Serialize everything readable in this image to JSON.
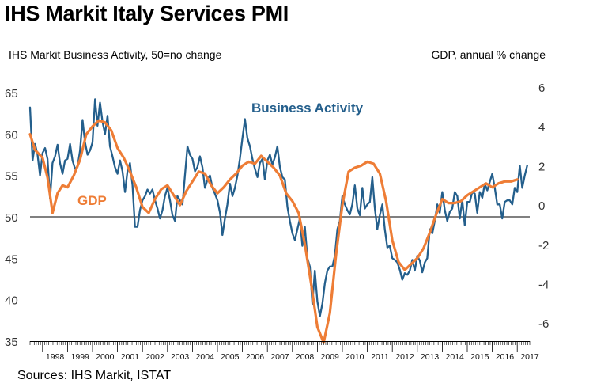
{
  "title": "IHS Markit Italy Services PMI",
  "left_axis_label": "IHS Markit Business Activity, 50=no change",
  "right_axis_label": "GDP, annual % change",
  "source": "Sources: IHS Markit, ISTAT",
  "colors": {
    "business_activity": "#245f8c",
    "gdp": "#ee7d36",
    "reference_line": "#000000"
  },
  "chart_data": {
    "type": "line",
    "title": "IHS Markit Italy Services PMI",
    "x_categories": [
      "1998",
      "1999",
      "2000",
      "2001",
      "2002",
      "2003",
      "2004",
      "2005",
      "2006",
      "2007",
      "2008",
      "2009",
      "2010",
      "2011",
      "2012",
      "2013",
      "2014",
      "2015",
      "2016",
      "2017"
    ],
    "x_range": [
      1997.5,
      2017.5
    ],
    "left_axis": {
      "label": "IHS Markit Business Activity, 50=no change",
      "min": 35,
      "max": 65,
      "ticks": [
        35,
        40,
        45,
        50,
        55,
        60,
        65
      ],
      "reference_line": 50
    },
    "right_axis": {
      "label": "GDP, annual % change",
      "min": -7,
      "max": 6,
      "ticks": [
        -6,
        -4,
        -2,
        0,
        2,
        4,
        6
      ]
    },
    "series": [
      {
        "name": "Business Activity",
        "axis": "left",
        "points": [
          [
            1997.5,
            63.2
          ],
          [
            1997.6,
            56.8
          ],
          [
            1997.7,
            58.8
          ],
          [
            1997.8,
            57.5
          ],
          [
            1997.9,
            55.0
          ],
          [
            1998.0,
            57.7
          ],
          [
            1998.1,
            58.3
          ],
          [
            1998.2,
            57.0
          ],
          [
            1998.3,
            52.2
          ],
          [
            1998.4,
            56.5
          ],
          [
            1998.5,
            57.3
          ],
          [
            1998.6,
            58.7
          ],
          [
            1998.7,
            56.5
          ],
          [
            1998.8,
            55.2
          ],
          [
            1998.9,
            56.8
          ],
          [
            1999.0,
            57.0
          ],
          [
            1999.1,
            58.8
          ],
          [
            1999.2,
            56.8
          ],
          [
            1999.3,
            55.8
          ],
          [
            1999.4,
            56.0
          ],
          [
            1999.5,
            58.0
          ],
          [
            1999.6,
            61.7
          ],
          [
            1999.7,
            59.0
          ],
          [
            1999.8,
            57.5
          ],
          [
            1999.9,
            58.0
          ],
          [
            2000.0,
            59.0
          ],
          [
            2000.1,
            64.2
          ],
          [
            2000.2,
            61.0
          ],
          [
            2000.3,
            63.8
          ],
          [
            2000.4,
            61.5
          ],
          [
            2000.5,
            60.0
          ],
          [
            2000.6,
            62.2
          ],
          [
            2000.7,
            58.5
          ],
          [
            2000.8,
            57.3
          ],
          [
            2000.9,
            56.0
          ],
          [
            2001.0,
            55.2
          ],
          [
            2001.1,
            56.8
          ],
          [
            2001.2,
            55.5
          ],
          [
            2001.3,
            53.0
          ],
          [
            2001.4,
            55.5
          ],
          [
            2001.5,
            56.5
          ],
          [
            2001.6,
            53.8
          ],
          [
            2001.7,
            48.8
          ],
          [
            2001.8,
            48.8
          ],
          [
            2001.9,
            50.8
          ],
          [
            2002.0,
            52.0
          ],
          [
            2002.1,
            52.5
          ],
          [
            2002.2,
            53.3
          ],
          [
            2002.3,
            52.8
          ],
          [
            2002.4,
            53.3
          ],
          [
            2002.5,
            52.0
          ],
          [
            2002.6,
            51.0
          ],
          [
            2002.7,
            49.8
          ],
          [
            2002.8,
            50.8
          ],
          [
            2002.9,
            52.5
          ],
          [
            2003.0,
            53.5
          ],
          [
            2003.1,
            52.0
          ],
          [
            2003.2,
            50.2
          ],
          [
            2003.3,
            49.5
          ],
          [
            2003.4,
            52.5
          ],
          [
            2003.5,
            52.0
          ],
          [
            2003.6,
            51.5
          ],
          [
            2003.7,
            55.0
          ],
          [
            2003.8,
            58.5
          ],
          [
            2003.9,
            57.5
          ],
          [
            2004.0,
            57.0
          ],
          [
            2004.1,
            55.5
          ],
          [
            2004.2,
            56.0
          ],
          [
            2004.3,
            57.3
          ],
          [
            2004.4,
            56.0
          ],
          [
            2004.5,
            53.5
          ],
          [
            2004.6,
            54.5
          ],
          [
            2004.7,
            55.0
          ],
          [
            2004.8,
            53.5
          ],
          [
            2004.9,
            52.8
          ],
          [
            2005.0,
            52.0
          ],
          [
            2005.1,
            50.5
          ],
          [
            2005.2,
            47.8
          ],
          [
            2005.3,
            49.8
          ],
          [
            2005.4,
            51.5
          ],
          [
            2005.5,
            54.0
          ],
          [
            2005.6,
            52.5
          ],
          [
            2005.7,
            53.5
          ],
          [
            2005.8,
            55.0
          ],
          [
            2005.9,
            57.0
          ],
          [
            2006.0,
            59.5
          ],
          [
            2006.1,
            61.8
          ],
          [
            2006.2,
            59.5
          ],
          [
            2006.3,
            58.5
          ],
          [
            2006.4,
            57.0
          ],
          [
            2006.5,
            55.8
          ],
          [
            2006.6,
            54.8
          ],
          [
            2006.7,
            56.5
          ],
          [
            2006.8,
            57.0
          ],
          [
            2006.9,
            54.5
          ],
          [
            2007.0,
            56.8
          ],
          [
            2007.1,
            57.5
          ],
          [
            2007.2,
            56.3
          ],
          [
            2007.3,
            57.2
          ],
          [
            2007.4,
            58.5
          ],
          [
            2007.5,
            56.0
          ],
          [
            2007.6,
            54.8
          ],
          [
            2007.7,
            54.5
          ],
          [
            2007.8,
            51.2
          ],
          [
            2007.9,
            49.5
          ],
          [
            2008.0,
            48.0
          ],
          [
            2008.1,
            47.2
          ],
          [
            2008.2,
            48.5
          ],
          [
            2008.3,
            49.8
          ],
          [
            2008.4,
            46.5
          ],
          [
            2008.5,
            48.8
          ],
          [
            2008.6,
            45.0
          ],
          [
            2008.7,
            44.0
          ],
          [
            2008.8,
            39.5
          ],
          [
            2008.9,
            43.5
          ],
          [
            2009.0,
            39.8
          ],
          [
            2009.1,
            38.0
          ],
          [
            2009.2,
            39.5
          ],
          [
            2009.3,
            42.0
          ],
          [
            2009.4,
            43.5
          ],
          [
            2009.5,
            44.0
          ],
          [
            2009.6,
            44.0
          ],
          [
            2009.7,
            45.3
          ],
          [
            2009.8,
            48.5
          ],
          [
            2009.9,
            49.5
          ],
          [
            2010.0,
            52.5
          ],
          [
            2010.1,
            51.5
          ],
          [
            2010.2,
            50.8
          ],
          [
            2010.3,
            50.3
          ],
          [
            2010.4,
            51.5
          ],
          [
            2010.5,
            53.8
          ],
          [
            2010.6,
            51.0
          ],
          [
            2010.7,
            50.2
          ],
          [
            2010.8,
            53.5
          ],
          [
            2010.9,
            51.0
          ],
          [
            2011.0,
            51.5
          ],
          [
            2011.1,
            51.8
          ],
          [
            2011.2,
            54.8
          ],
          [
            2011.3,
            51.0
          ],
          [
            2011.4,
            48.5
          ],
          [
            2011.5,
            50.2
          ],
          [
            2011.6,
            51.5
          ],
          [
            2011.7,
            48.5
          ],
          [
            2011.8,
            46.3
          ],
          [
            2011.9,
            46.5
          ],
          [
            2012.0,
            45.0
          ],
          [
            2012.1,
            44.8
          ],
          [
            2012.2,
            44.5
          ],
          [
            2012.3,
            43.6
          ],
          [
            2012.4,
            42.4
          ],
          [
            2012.5,
            43.2
          ],
          [
            2012.6,
            43.0
          ],
          [
            2012.7,
            43.5
          ],
          [
            2012.8,
            44.8
          ],
          [
            2012.9,
            43.5
          ],
          [
            2013.0,
            45.3
          ],
          [
            2013.1,
            44.7
          ],
          [
            2013.2,
            43.3
          ],
          [
            2013.3,
            44.5
          ],
          [
            2013.4,
            45.0
          ],
          [
            2013.5,
            48.5
          ],
          [
            2013.6,
            48.0
          ],
          [
            2013.7,
            49.5
          ],
          [
            2013.8,
            51.5
          ],
          [
            2013.9,
            50.5
          ],
          [
            2014.0,
            53.0
          ],
          [
            2014.1,
            50.8
          ],
          [
            2014.2,
            49.5
          ],
          [
            2014.3,
            50.6
          ],
          [
            2014.4,
            51.0
          ],
          [
            2014.5,
            53.0
          ],
          [
            2014.6,
            52.5
          ],
          [
            2014.7,
            49.8
          ],
          [
            2014.8,
            52.0
          ],
          [
            2014.9,
            49.0
          ],
          [
            2015.0,
            51.8
          ],
          [
            2015.1,
            51.8
          ],
          [
            2015.2,
            53.0
          ],
          [
            2015.3,
            52.8
          ],
          [
            2015.4,
            50.5
          ],
          [
            2015.5,
            53.0
          ],
          [
            2015.6,
            52.3
          ],
          [
            2015.7,
            54.0
          ],
          [
            2015.8,
            53.2
          ],
          [
            2015.9,
            54.2
          ],
          [
            2016.0,
            55.2
          ],
          [
            2016.1,
            53.5
          ],
          [
            2016.2,
            51.5
          ],
          [
            2016.3,
            51.5
          ],
          [
            2016.4,
            49.8
          ],
          [
            2016.5,
            51.8
          ],
          [
            2016.6,
            52.0
          ],
          [
            2016.7,
            52.0
          ],
          [
            2016.8,
            51.5
          ],
          [
            2016.9,
            53.5
          ],
          [
            2017.0,
            53.0
          ],
          [
            2017.1,
            56.2
          ],
          [
            2017.2,
            53.5
          ],
          [
            2017.3,
            55.0
          ],
          [
            2017.4,
            56.2
          ]
        ]
      },
      {
        "name": "GDP",
        "axis": "right",
        "points": [
          [
            1997.5,
            3.6
          ],
          [
            1997.7,
            2.8
          ],
          [
            1998.0,
            2.4
          ],
          [
            1998.2,
            1.4
          ],
          [
            1998.3,
            0.5
          ],
          [
            1998.4,
            -0.4
          ],
          [
            1998.6,
            0.6
          ],
          [
            1998.8,
            1.0
          ],
          [
            1999.0,
            0.9
          ],
          [
            1999.25,
            1.5
          ],
          [
            1999.5,
            2.3
          ],
          [
            1999.75,
            3.6
          ],
          [
            2000.0,
            4.0
          ],
          [
            2000.25,
            4.3
          ],
          [
            2000.5,
            4.2
          ],
          [
            2000.75,
            3.8
          ],
          [
            2001.0,
            2.9
          ],
          [
            2001.25,
            2.4
          ],
          [
            2001.5,
            1.7
          ],
          [
            2001.75,
            0.9
          ],
          [
            2002.0,
            -0.1
          ],
          [
            2002.25,
            -0.4
          ],
          [
            2002.5,
            0.3
          ],
          [
            2002.75,
            0.8
          ],
          [
            2003.0,
            1.0
          ],
          [
            2003.25,
            0.5
          ],
          [
            2003.5,
            0.0
          ],
          [
            2003.75,
            0.7
          ],
          [
            2004.0,
            1.2
          ],
          [
            2004.25,
            1.7
          ],
          [
            2004.5,
            1.6
          ],
          [
            2004.75,
            1.0
          ],
          [
            2005.0,
            0.6
          ],
          [
            2005.25,
            0.9
          ],
          [
            2005.5,
            1.3
          ],
          [
            2005.75,
            1.6
          ],
          [
            2006.0,
            2.0
          ],
          [
            2006.25,
            2.2
          ],
          [
            2006.5,
            2.1
          ],
          [
            2006.75,
            2.5
          ],
          [
            2007.0,
            2.2
          ],
          [
            2007.25,
            1.9
          ],
          [
            2007.5,
            1.5
          ],
          [
            2007.75,
            0.6
          ],
          [
            2008.0,
            0.2
          ],
          [
            2008.25,
            -0.4
          ],
          [
            2008.5,
            -2.0
          ],
          [
            2008.75,
            -4.0
          ],
          [
            2009.0,
            -6.2
          ],
          [
            2009.25,
            -7.0
          ],
          [
            2009.5,
            -5.5
          ],
          [
            2009.75,
            -2.5
          ],
          [
            2010.0,
            0.0
          ],
          [
            2010.25,
            1.7
          ],
          [
            2010.5,
            1.9
          ],
          [
            2010.75,
            2.0
          ],
          [
            2011.0,
            2.2
          ],
          [
            2011.25,
            2.1
          ],
          [
            2011.5,
            1.6
          ],
          [
            2011.75,
            0.2
          ],
          [
            2012.0,
            -1.8
          ],
          [
            2012.25,
            -2.9
          ],
          [
            2012.5,
            -3.3
          ],
          [
            2012.75,
            -3.0
          ],
          [
            2013.0,
            -2.7
          ],
          [
            2013.25,
            -2.2
          ],
          [
            2013.5,
            -1.4
          ],
          [
            2013.75,
            -0.5
          ],
          [
            2014.0,
            0.3
          ],
          [
            2014.25,
            0.1
          ],
          [
            2014.5,
            0.1
          ],
          [
            2014.75,
            0.2
          ],
          [
            2015.0,
            0.5
          ],
          [
            2015.25,
            0.7
          ],
          [
            2015.5,
            0.9
          ],
          [
            2015.75,
            1.1
          ],
          [
            2016.0,
            0.9
          ],
          [
            2016.25,
            1.1
          ],
          [
            2016.5,
            1.2
          ],
          [
            2016.75,
            1.2
          ],
          [
            2017.0,
            1.3
          ]
        ]
      }
    ],
    "annotations": [
      {
        "text": "Business Activity",
        "series": "Business Activity"
      },
      {
        "text": "GDP",
        "series": "GDP"
      }
    ]
  }
}
